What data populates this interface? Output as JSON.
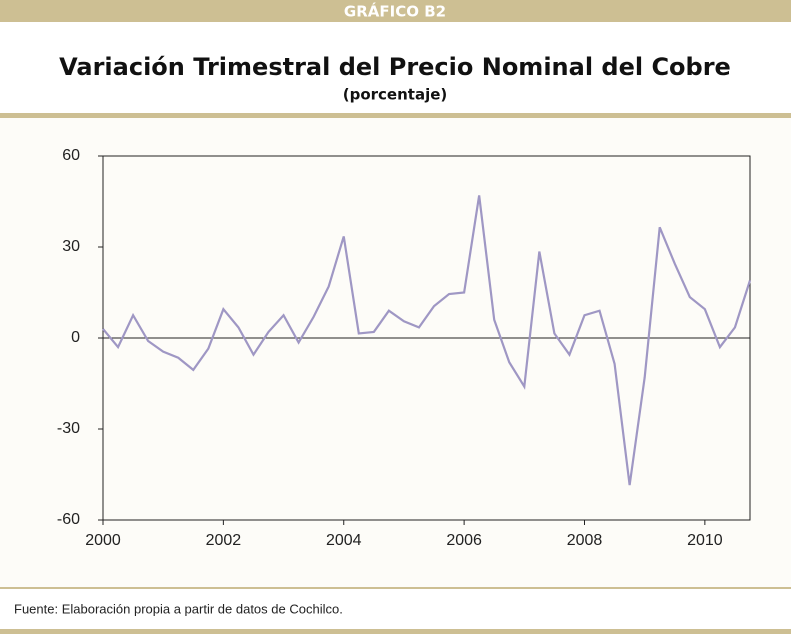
{
  "header": "GRÁFICO B2",
  "source": "Fuente: Elaboración propia a partir de datos de Cochilco.",
  "chart_data": {
    "type": "line",
    "title": "Variación Trimestral del Precio Nominal del Cobre",
    "subtitle": "(porcentaje)",
    "x": [
      2000,
      2000.25,
      2000.5,
      2000.75,
      2001,
      2001.25,
      2001.5,
      2001.75,
      2002,
      2002.25,
      2002.5,
      2002.75,
      2003,
      2003.25,
      2003.5,
      2003.75,
      2004,
      2004.25,
      2004.5,
      2004.75,
      2005,
      2005.25,
      2005.5,
      2005.75,
      2006,
      2006.25,
      2006.5,
      2006.75,
      2007,
      2007.25,
      2007.5,
      2007.75,
      2008,
      2008.25,
      2008.5,
      2008.75,
      2009,
      2009.25,
      2009.5,
      2009.75,
      2010,
      2010.25,
      2010.5,
      2010.75
    ],
    "series": [
      {
        "color": "#9f97c4",
        "values": [
          3,
          -3,
          7.5,
          -1,
          -4.5,
          -6.5,
          -10.5,
          -3.5,
          9.5,
          3.5,
          -5.5,
          2,
          7.5,
          -1.5,
          7,
          17,
          33.5,
          1.5,
          2,
          9,
          5.5,
          3.5,
          10.5,
          14.5,
          15,
          47,
          6,
          -8,
          -16,
          28.5,
          1.5,
          -5.5,
          7.5,
          9,
          -8.5,
          -48.5,
          -13,
          36.5,
          24.5,
          13.5,
          9.5,
          -3,
          3.5,
          19
        ]
      }
    ],
    "xlim": [
      2000,
      2010.75
    ],
    "xticks": [
      2000,
      2002,
      2004,
      2006,
      2008,
      2010
    ],
    "ylim": [
      -60,
      60
    ],
    "yticks": [
      -60,
      -30,
      0,
      30,
      60
    ]
  }
}
